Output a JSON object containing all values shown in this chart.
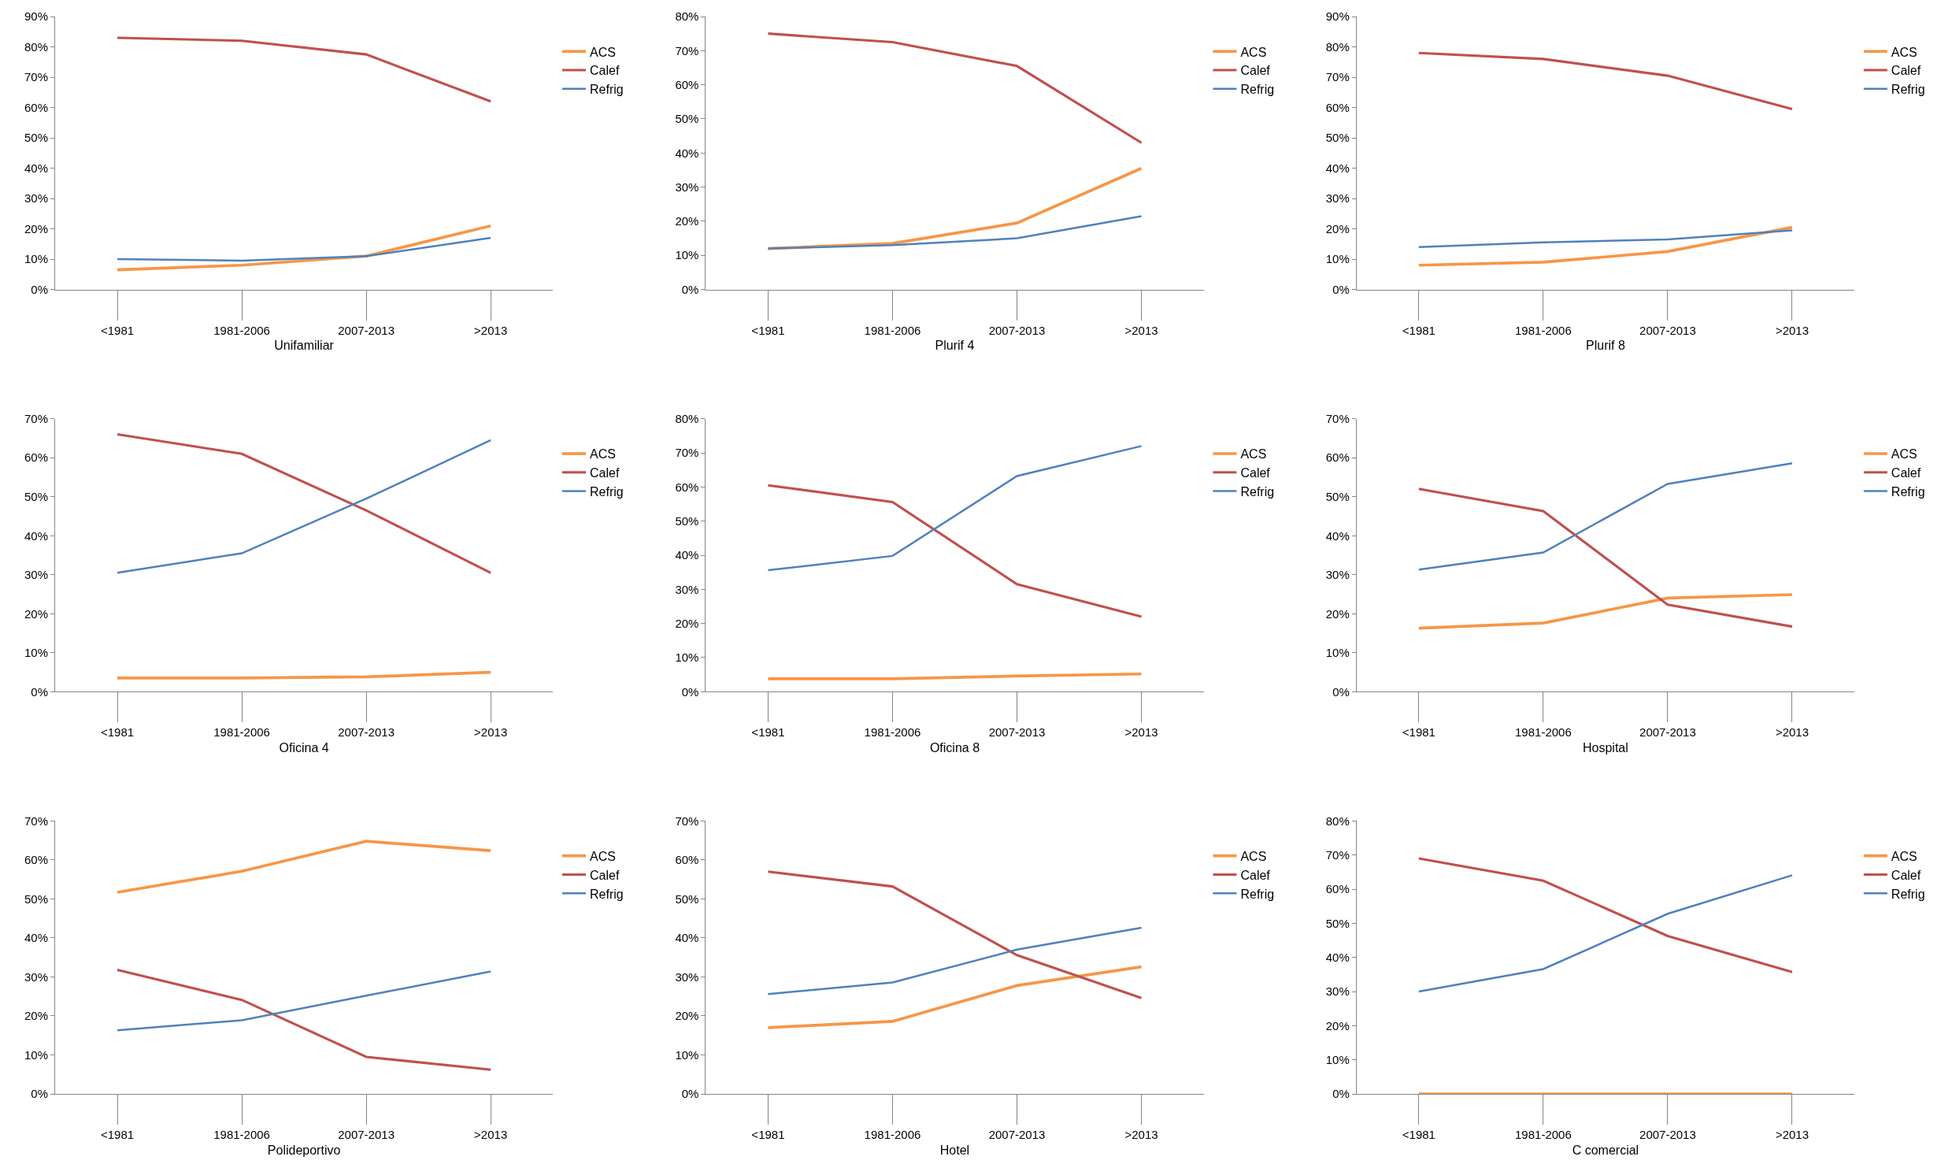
{
  "chart_data": [
    {
      "type": "line",
      "xlabel": "Unifamiliar",
      "categories": [
        "<1981",
        "1981-2006",
        "2007-2013",
        ">2013"
      ],
      "legend": "top right",
      "grid": false,
      "marker": "none",
      "line_style": "solid",
      "ylim": [
        0,
        90
      ],
      "yticks": [
        {
          "value": 0,
          "label": "0%"
        },
        {
          "value": 10,
          "label": "10%"
        },
        {
          "value": 20,
          "label": "20%"
        },
        {
          "value": 30,
          "label": "30%"
        },
        {
          "value": 40,
          "label": "40%"
        },
        {
          "value": 50,
          "label": "50%"
        },
        {
          "value": 60,
          "label": "60%"
        },
        {
          "value": 70,
          "label": "70%"
        },
        {
          "value": 80,
          "label": "80%"
        },
        {
          "value": 90,
          "label": "90%"
        }
      ],
      "series": [
        {
          "name": "ACS",
          "color": "#f79646",
          "values": [
            6.5,
            8,
            11,
            21
          ]
        },
        {
          "name": "Calef",
          "color": "#c0504d",
          "values": [
            83,
            82,
            77.5,
            62
          ]
        },
        {
          "name": "Refrig",
          "color": "#4f81bd",
          "values": [
            10,
            9.5,
            11,
            17
          ]
        }
      ]
    },
    {
      "type": "line",
      "xlabel": "Plurif 4",
      "categories": [
        "<1981",
        "1981-2006",
        "2007-2013",
        ">2013"
      ],
      "legend": "top right",
      "grid": false,
      "marker": "none",
      "line_style": "solid",
      "ylim": [
        0,
        80
      ],
      "yticks": [
        {
          "value": 0,
          "label": "0%"
        },
        {
          "value": 10,
          "label": "10%"
        },
        {
          "value": 20,
          "label": "20%"
        },
        {
          "value": 30,
          "label": "30%"
        },
        {
          "value": 40,
          "label": "40%"
        },
        {
          "value": 50,
          "label": "50%"
        },
        {
          "value": 60,
          "label": "60%"
        },
        {
          "value": 70,
          "label": "70%"
        },
        {
          "value": 80,
          "label": "80%"
        }
      ],
      "series": [
        {
          "name": "ACS",
          "color": "#f79646",
          "values": [
            12,
            13.5,
            19.5,
            35.5
          ]
        },
        {
          "name": "Calef",
          "color": "#c0504d",
          "values": [
            75,
            72.5,
            65.5,
            43
          ]
        },
        {
          "name": "Refrig",
          "color": "#4f81bd",
          "values": [
            12,
            13,
            15,
            21.5
          ]
        }
      ]
    },
    {
      "type": "line",
      "xlabel": "Plurif 8",
      "categories": [
        "<1981",
        "1981-2006",
        "2007-2013",
        ">2013"
      ],
      "legend": "top right",
      "grid": false,
      "marker": "none",
      "line_style": "solid",
      "ylim": [
        0,
        90
      ],
      "yticks": [
        {
          "value": 0,
          "label": "0%"
        },
        {
          "value": 10,
          "label": "10%"
        },
        {
          "value": 20,
          "label": "20%"
        },
        {
          "value": 30,
          "label": "30%"
        },
        {
          "value": 40,
          "label": "40%"
        },
        {
          "value": 50,
          "label": "50%"
        },
        {
          "value": 60,
          "label": "60%"
        },
        {
          "value": 70,
          "label": "70%"
        },
        {
          "value": 80,
          "label": "80%"
        },
        {
          "value": 90,
          "label": "90%"
        }
      ],
      "series": [
        {
          "name": "ACS",
          "color": "#f79646",
          "values": [
            8,
            9,
            12.5,
            20.5
          ]
        },
        {
          "name": "Calef",
          "color": "#c0504d",
          "values": [
            78,
            76,
            70.5,
            59.5
          ]
        },
        {
          "name": "Refrig",
          "color": "#4f81bd",
          "values": [
            14,
            15.5,
            16.5,
            19.5
          ]
        }
      ]
    },
    {
      "type": "line",
      "xlabel": "Oficina 4",
      "categories": [
        "<1981",
        "1981-2006",
        "2007-2013",
        ">2013"
      ],
      "legend": "top right",
      "grid": false,
      "marker": "none",
      "line_style": "solid",
      "ylim": [
        0,
        70
      ],
      "yticks": [
        {
          "value": 0,
          "label": "0%"
        },
        {
          "value": 10,
          "label": "10%"
        },
        {
          "value": 20,
          "label": "20%"
        },
        {
          "value": 30,
          "label": "30%"
        },
        {
          "value": 40,
          "label": "40%"
        },
        {
          "value": 50,
          "label": "50%"
        },
        {
          "value": 60,
          "label": "60%"
        },
        {
          "value": 70,
          "label": "70%"
        }
      ],
      "series": [
        {
          "name": "ACS",
          "color": "#f79646",
          "values": [
            3.5,
            3.5,
            3.8,
            5
          ]
        },
        {
          "name": "Calef",
          "color": "#c0504d",
          "values": [
            66,
            61,
            46.5,
            30.5
          ]
        },
        {
          "name": "Refrig",
          "color": "#4f81bd",
          "values": [
            30.5,
            35.5,
            49.5,
            64.5
          ]
        }
      ]
    },
    {
      "type": "line",
      "xlabel": "Oficina 8",
      "categories": [
        "<1981",
        "1981-2006",
        "2007-2013",
        ">2013"
      ],
      "legend": "top right",
      "grid": false,
      "marker": "none",
      "line_style": "solid",
      "ylim": [
        0,
        80
      ],
      "yticks": [
        {
          "value": 0,
          "label": "0%"
        },
        {
          "value": 10,
          "label": "10%"
        },
        {
          "value": 20,
          "label": "20%"
        },
        {
          "value": 30,
          "label": "30%"
        },
        {
          "value": 40,
          "label": "40%"
        },
        {
          "value": 50,
          "label": "50%"
        },
        {
          "value": 60,
          "label": "60%"
        },
        {
          "value": 70,
          "label": "70%"
        },
        {
          "value": 80,
          "label": "80%"
        }
      ],
      "series": [
        {
          "name": "ACS",
          "color": "#f79646",
          "values": [
            3.8,
            3.8,
            4.6,
            5.2
          ]
        },
        {
          "name": "Calef",
          "color": "#c0504d",
          "values": [
            60.5,
            55.6,
            31.5,
            22
          ]
        },
        {
          "name": "Refrig",
          "color": "#4f81bd",
          "values": [
            35.6,
            39.8,
            63.2,
            72
          ]
        }
      ]
    },
    {
      "type": "line",
      "xlabel": "Hospital",
      "categories": [
        "<1981",
        "1981-2006",
        "2007-2013",
        ">2013"
      ],
      "legend": "top right",
      "grid": false,
      "marker": "none",
      "line_style": "solid",
      "ylim": [
        0,
        70
      ],
      "yticks": [
        {
          "value": 0,
          "label": "0%"
        },
        {
          "value": 10,
          "label": "10%"
        },
        {
          "value": 20,
          "label": "20%"
        },
        {
          "value": 30,
          "label": "30%"
        },
        {
          "value": 40,
          "label": "40%"
        },
        {
          "value": 50,
          "label": "50%"
        },
        {
          "value": 60,
          "label": "60%"
        },
        {
          "value": 70,
          "label": "70%"
        }
      ],
      "series": [
        {
          "name": "ACS",
          "color": "#f79646",
          "values": [
            16.3,
            17.6,
            24,
            24.9
          ]
        },
        {
          "name": "Calef",
          "color": "#c0504d",
          "values": [
            52,
            46.3,
            22.3,
            16.7
          ]
        },
        {
          "name": "Refrig",
          "color": "#4f81bd",
          "values": [
            31.3,
            35.7,
            53.3,
            58.6
          ]
        }
      ]
    },
    {
      "type": "line",
      "xlabel": "Polideportivo",
      "categories": [
        "<1981",
        "1981-2006",
        "2007-2013",
        ">2013"
      ],
      "legend": "top right",
      "grid": false,
      "marker": "none",
      "line_style": "solid",
      "ylim": [
        0,
        70
      ],
      "yticks": [
        {
          "value": 0,
          "label": "0%"
        },
        {
          "value": 10,
          "label": "10%"
        },
        {
          "value": 20,
          "label": "20%"
        },
        {
          "value": 30,
          "label": "30%"
        },
        {
          "value": 40,
          "label": "40%"
        },
        {
          "value": 50,
          "label": "50%"
        },
        {
          "value": 60,
          "label": "60%"
        },
        {
          "value": 70,
          "label": "70%"
        }
      ],
      "series": [
        {
          "name": "ACS",
          "color": "#f79646",
          "values": [
            51.7,
            57.1,
            64.8,
            62.4
          ]
        },
        {
          "name": "Calef",
          "color": "#c0504d",
          "values": [
            31.8,
            24.1,
            9.5,
            6.2
          ]
        },
        {
          "name": "Refrig",
          "color": "#4f81bd",
          "values": [
            16.3,
            18.9,
            25.2,
            31.4
          ]
        }
      ]
    },
    {
      "type": "line",
      "xlabel": "Hotel",
      "categories": [
        "<1981",
        "1981-2006",
        "2007-2013",
        ">2013"
      ],
      "legend": "top right",
      "grid": false,
      "marker": "none",
      "line_style": "solid",
      "ylim": [
        0,
        70
      ],
      "yticks": [
        {
          "value": 0,
          "label": "0%"
        },
        {
          "value": 10,
          "label": "10%"
        },
        {
          "value": 20,
          "label": "20%"
        },
        {
          "value": 30,
          "label": "30%"
        },
        {
          "value": 40,
          "label": "40%"
        },
        {
          "value": 50,
          "label": "50%"
        },
        {
          "value": 60,
          "label": "60%"
        },
        {
          "value": 70,
          "label": "70%"
        }
      ],
      "series": [
        {
          "name": "ACS",
          "color": "#f79646",
          "values": [
            17,
            18.6,
            27.8,
            32.6
          ]
        },
        {
          "name": "Calef",
          "color": "#c0504d",
          "values": [
            57,
            53.2,
            35.6,
            24.6
          ]
        },
        {
          "name": "Refrig",
          "color": "#4f81bd",
          "values": [
            25.6,
            28.6,
            37,
            42.6
          ]
        }
      ]
    },
    {
      "type": "line",
      "xlabel": "C comercial",
      "categories": [
        "<1981",
        "1981-2006",
        "2007-2013",
        ">2013"
      ],
      "legend": "top right",
      "grid": false,
      "marker": "none",
      "line_style": "solid",
      "ylim": [
        0,
        80
      ],
      "yticks": [
        {
          "value": 0,
          "label": "0%"
        },
        {
          "value": 10,
          "label": "10%"
        },
        {
          "value": 20,
          "label": "20%"
        },
        {
          "value": 30,
          "label": "30%"
        },
        {
          "value": 40,
          "label": "40%"
        },
        {
          "value": 50,
          "label": "50%"
        },
        {
          "value": 60,
          "label": "60%"
        },
        {
          "value": 70,
          "label": "70%"
        },
        {
          "value": 80,
          "label": "80%"
        }
      ],
      "series": [
        {
          "name": "ACS",
          "color": "#f79646",
          "values": [
            0,
            0,
            0,
            0
          ]
        },
        {
          "name": "Calef",
          "color": "#c0504d",
          "values": [
            69,
            62.5,
            46.3,
            35.7
          ]
        },
        {
          "name": "Refrig",
          "color": "#4f81bd",
          "values": [
            30,
            36.6,
            52.8,
            64.1
          ]
        }
      ]
    }
  ]
}
